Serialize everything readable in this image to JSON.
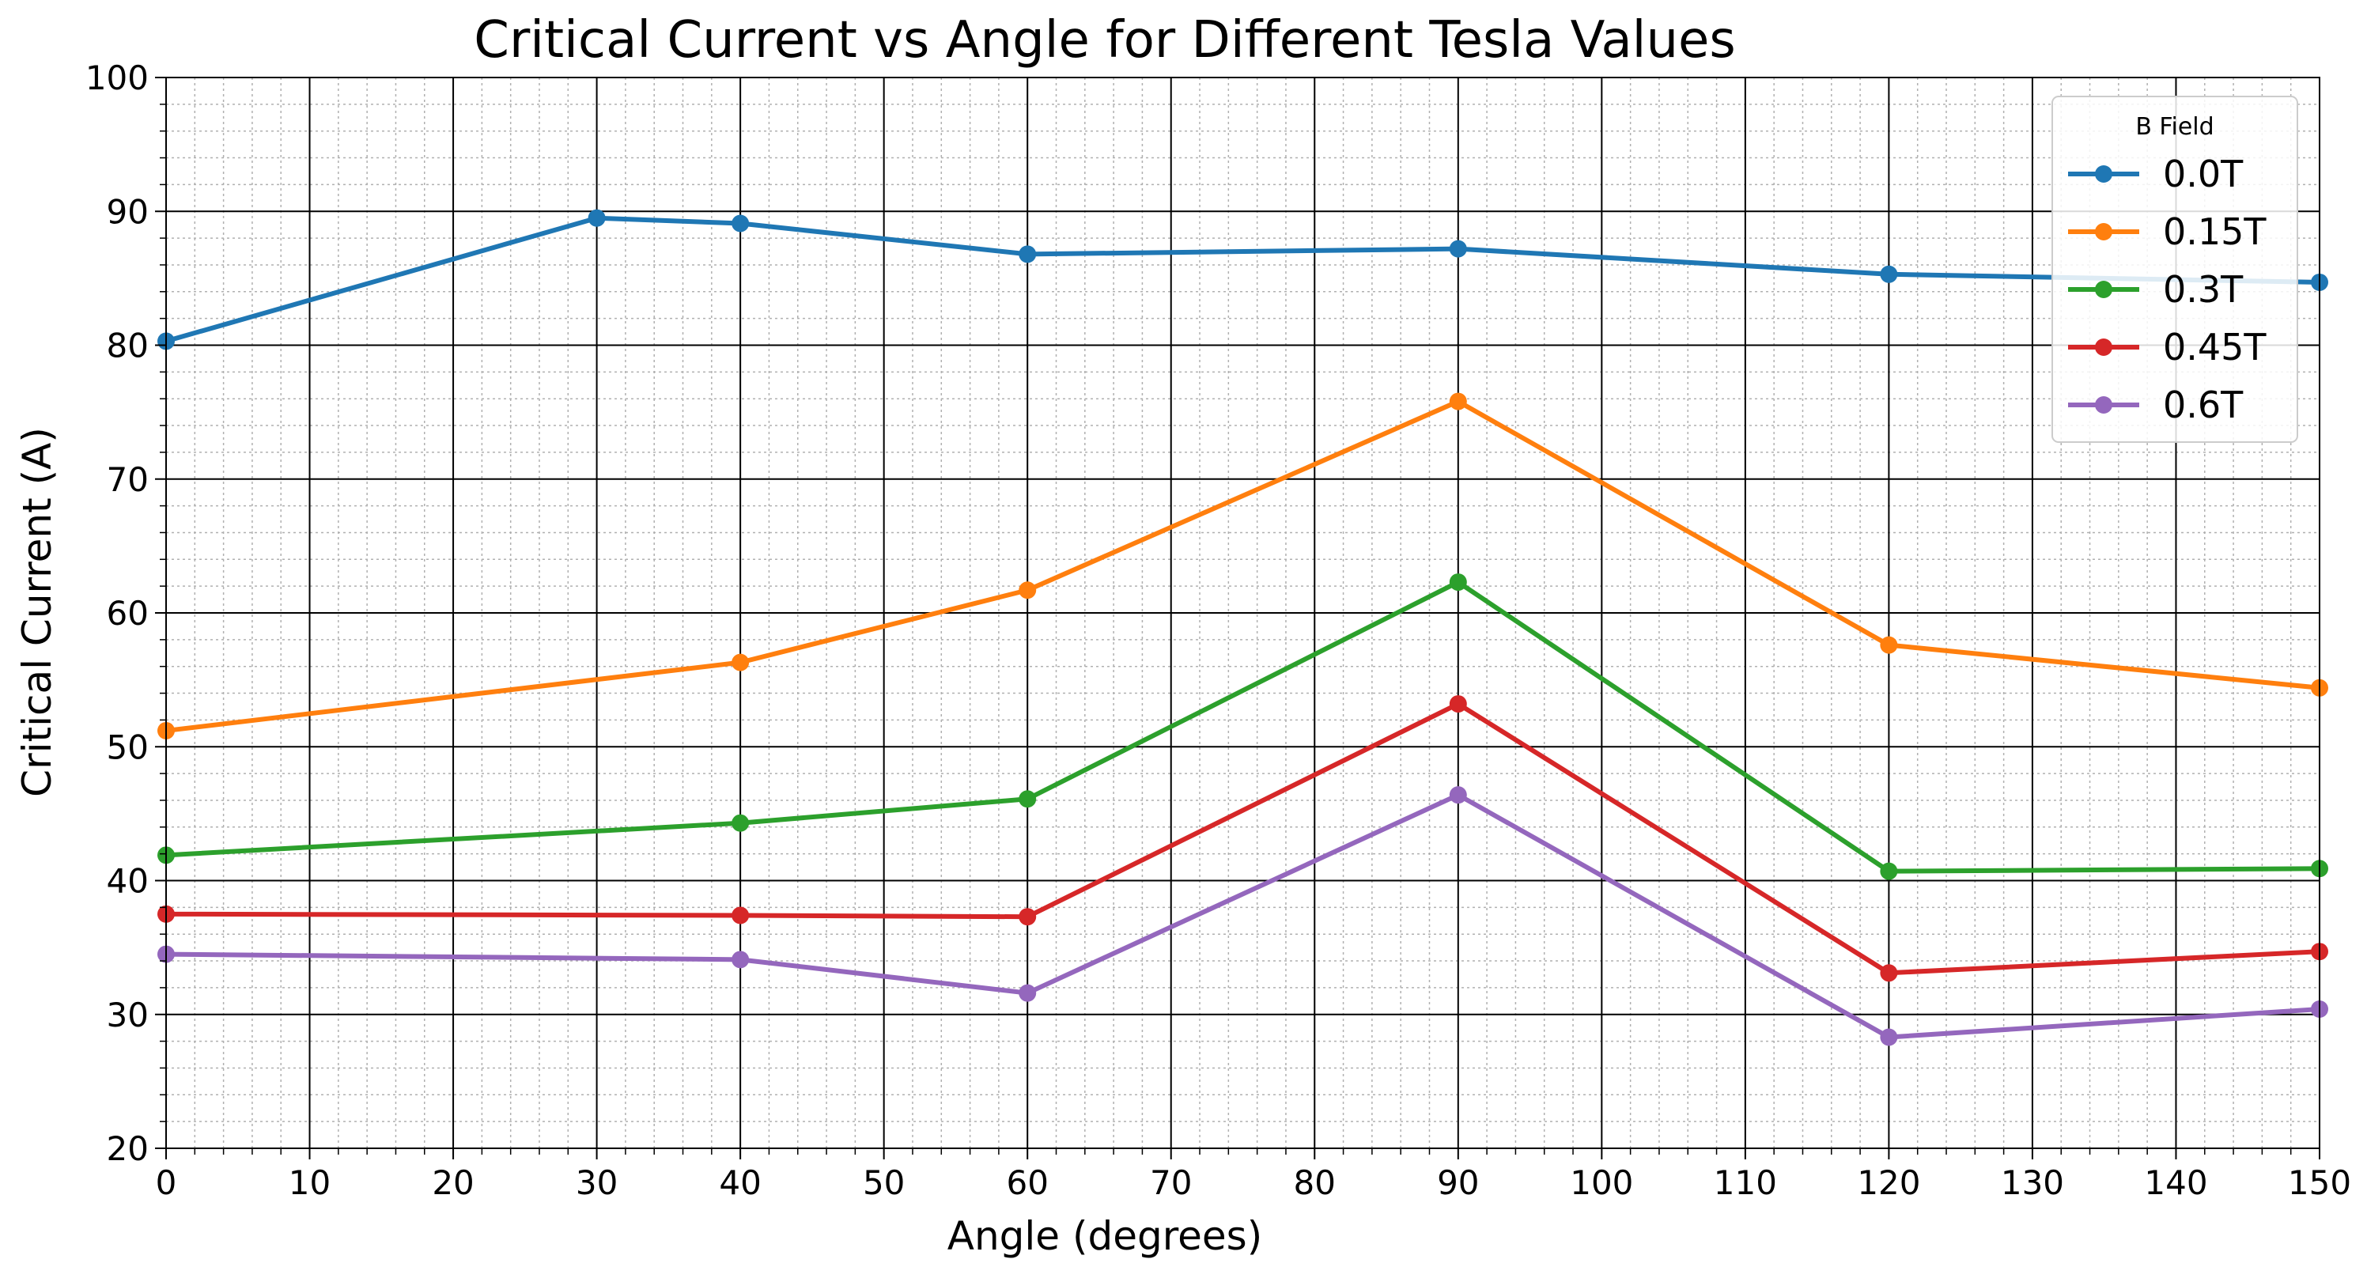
{
  "chart_data": {
    "type": "line",
    "title": "Critical Current vs Angle for Different Tesla Values",
    "xlabel": "Angle (degrees)",
    "ylabel": "Critical Current (A)",
    "xlim": [
      0,
      150
    ],
    "ylim": [
      20,
      100
    ],
    "xticks": [
      0,
      10,
      20,
      30,
      40,
      50,
      60,
      70,
      80,
      90,
      100,
      110,
      120,
      130,
      140,
      150
    ],
    "yticks": [
      20,
      30,
      40,
      50,
      60,
      70,
      80,
      90,
      100
    ],
    "grid": true,
    "minor_grid": true,
    "legend": {
      "title": "B Field",
      "placement": "top-right"
    },
    "series": [
      {
        "name": "0.0T",
        "color": "#1f77b4",
        "x": [
          0,
          30,
          40,
          60,
          90,
          120,
          150
        ],
        "y": [
          80.3,
          89.5,
          89.1,
          86.8,
          87.2,
          85.3,
          84.7
        ]
      },
      {
        "name": "0.15T",
        "color": "#ff7f0e",
        "x": [
          0,
          40,
          60,
          90,
          120,
          150
        ],
        "y": [
          51.2,
          56.3,
          61.7,
          75.8,
          57.6,
          54.4
        ]
      },
      {
        "name": "0.3T",
        "color": "#2ca02c",
        "x": [
          0,
          40,
          60,
          90,
          120,
          150
        ],
        "y": [
          41.9,
          44.3,
          46.1,
          62.3,
          40.7,
          40.9
        ]
      },
      {
        "name": "0.45T",
        "color": "#d62728",
        "x": [
          0,
          40,
          60,
          90,
          120,
          150
        ],
        "y": [
          37.5,
          37.4,
          37.3,
          53.2,
          33.1,
          34.7
        ]
      },
      {
        "name": "0.6T",
        "color": "#9467bd",
        "x": [
          0,
          40,
          60,
          90,
          120,
          150
        ],
        "y": [
          34.5,
          34.1,
          31.6,
          46.4,
          28.3,
          30.4
        ]
      }
    ]
  }
}
